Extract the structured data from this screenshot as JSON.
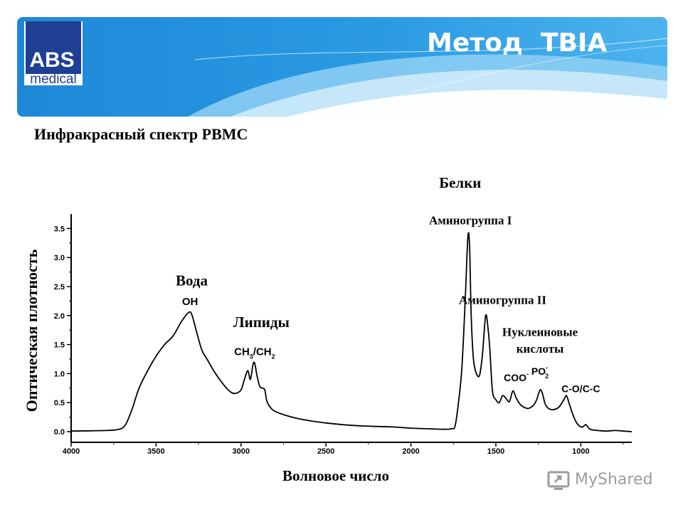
{
  "header": {
    "title": "Метод  TBIA",
    "logo": {
      "line1": "ABS",
      "line2": "medical"
    }
  },
  "subtitle": "Инфракрасный спектр PBMC",
  "watermark": {
    "text": "MyShared",
    "icon": "screen-share-icon"
  },
  "colors": {
    "banner": "#2c9be0",
    "logo": "#1f3f95",
    "line": "#000000"
  },
  "chart_data": {
    "type": "line",
    "title": "",
    "xlabel": "Волновое число",
    "ylabel": "Оптическая плотность",
    "xlim": [
      4000,
      700
    ],
    "ylim": [
      0,
      3.7
    ],
    "x_reversed": true,
    "xticks": [
      "4000",
      "3500",
      "3000",
      "2500",
      "2000",
      "1500",
      "1000"
    ],
    "yticks": [
      "0.0",
      "0.5",
      "1.0",
      "1.5",
      "2.0",
      "2.5",
      "3.0",
      "3.5"
    ],
    "series": [
      {
        "x": [
          4000,
          3800,
          3720,
          3680,
          3640,
          3600,
          3550,
          3500,
          3450,
          3400,
          3350,
          3310,
          3290,
          3260,
          3230,
          3200,
          3150,
          3100,
          3060,
          3030,
          3000,
          2980,
          2960,
          2945,
          2930,
          2920,
          2905,
          2890,
          2875,
          2860,
          2850,
          2835,
          2800,
          2700,
          2600,
          2500,
          2400,
          2300,
          2200,
          2100,
          2000,
          1900,
          1800,
          1760,
          1740,
          1720,
          1700,
          1680,
          1665,
          1655,
          1645,
          1630,
          1600,
          1580,
          1560,
          1545,
          1535,
          1520,
          1500,
          1480,
          1460,
          1440,
          1420,
          1400,
          1380,
          1360,
          1340,
          1310,
          1280,
          1260,
          1240,
          1225,
          1210,
          1190,
          1160,
          1130,
          1100,
          1085,
          1070,
          1050,
          1030,
          1010,
          990,
          970,
          950,
          930,
          900,
          850,
          800,
          750,
          700
        ],
        "y": [
          0.01,
          0.02,
          0.04,
          0.12,
          0.4,
          0.75,
          1.05,
          1.3,
          1.5,
          1.65,
          1.9,
          2.05,
          2.02,
          1.7,
          1.4,
          1.25,
          1.0,
          0.8,
          0.68,
          0.66,
          0.72,
          0.9,
          1.05,
          0.9,
          1.15,
          1.18,
          0.95,
          0.78,
          0.75,
          0.72,
          0.55,
          0.45,
          0.35,
          0.25,
          0.19,
          0.15,
          0.12,
          0.1,
          0.09,
          0.08,
          0.06,
          0.05,
          0.04,
          0.05,
          0.1,
          0.5,
          1.1,
          2.3,
          3.35,
          3.2,
          2.0,
          1.2,
          0.95,
          1.3,
          2.0,
          1.75,
          1.4,
          0.7,
          0.55,
          0.5,
          0.62,
          0.57,
          0.52,
          0.7,
          0.58,
          0.48,
          0.43,
          0.4,
          0.45,
          0.55,
          0.72,
          0.65,
          0.48,
          0.4,
          0.38,
          0.42,
          0.55,
          0.62,
          0.5,
          0.32,
          0.18,
          0.1,
          0.08,
          0.12,
          0.05,
          0.03,
          0.02,
          0.01,
          0.02,
          0.01,
          0.0
        ]
      }
    ],
    "annotations": [
      {
        "text": "Вода",
        "style": "serif",
        "size": 21,
        "x": 3290,
        "y": 2.52
      },
      {
        "text": "OH",
        "style": "sans",
        "size": 15,
        "x": 3300,
        "y": 2.18
      },
      {
        "text": "Липиды",
        "style": "serif",
        "size": 21,
        "x": 2880,
        "y": 1.8
      },
      {
        "text": "CH",
        "sub": "3",
        "text2": "/CH",
        "sub2": "2",
        "style": "sans",
        "size": 15,
        "x": 2920,
        "y": 1.32,
        "formula": true
      },
      {
        "text": "Белки",
        "style": "serif",
        "size": 21,
        "x": 1710,
        "y": 4.2
      },
      {
        "text": "Аминогруппа I",
        "style": "serif",
        "size": 17,
        "x": 1650,
        "y": 3.57
      },
      {
        "text": "Аминогруппа II",
        "style": "serif",
        "size": 17,
        "x": 1460,
        "y": 2.2
      },
      {
        "text": "Нуклеиновые",
        "style": "serif",
        "size": 17,
        "x": 1240,
        "y": 1.65
      },
      {
        "text": "кислоты",
        "style": "serif",
        "size": 17,
        "x": 1240,
        "y": 1.36
      },
      {
        "text": "COO",
        "sup": "-",
        "style": "sans",
        "size": 14,
        "x": 1380,
        "y": 0.87,
        "formula": true
      },
      {
        "text": "PO",
        "sup": "-",
        "sub": "2",
        "style": "sans",
        "size": 14,
        "x": 1240,
        "y": 0.98,
        "formula": true
      },
      {
        "text": "C-O/C-C",
        "style": "sans",
        "size": 14,
        "x": 1000,
        "y": 0.68
      }
    ]
  }
}
